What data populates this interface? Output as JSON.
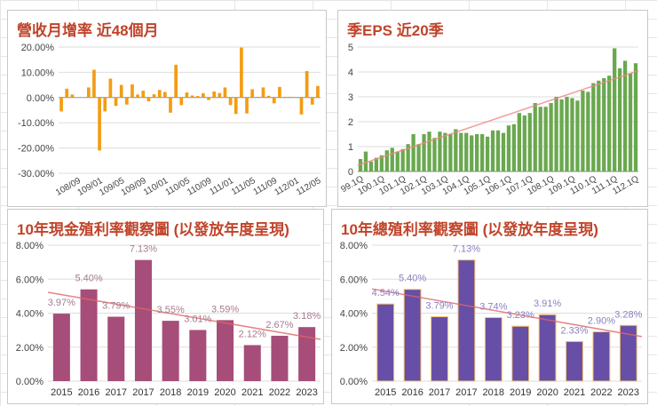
{
  "chart_data": [
    {
      "type": "bar",
      "title": "營收月增率 近48個月",
      "color": "#f39c12",
      "ylim": [
        -30,
        20
      ],
      "yticks": [
        "20.00%",
        "10.00%",
        "0.00%",
        "-10.00%",
        "-20.00%",
        "-30.00%"
      ],
      "ytick_values": [
        20,
        10,
        0,
        -10,
        -20,
        -30
      ],
      "categories": [
        "108/06",
        "108/07",
        "108/08",
        "108/09",
        "108/10",
        "108/11",
        "108/12",
        "109/01",
        "109/02",
        "109/03",
        "109/04",
        "109/05",
        "109/06",
        "109/07",
        "109/08",
        "109/09",
        "109/10",
        "109/11",
        "109/12",
        "110/01",
        "110/02",
        "110/03",
        "110/04",
        "110/05",
        "110/06",
        "110/07",
        "110/08",
        "110/09",
        "110/10",
        "110/11",
        "110/12",
        "111/01",
        "111/02",
        "111/03",
        "111/04",
        "111/05",
        "111/06",
        "111/07",
        "111/08",
        "111/09",
        "111/10",
        "111/11",
        "111/12",
        "112/01",
        "112/02",
        "112/03",
        "112/04",
        "112/05"
      ],
      "xtick_labels": [
        "108/09",
        "109/01",
        "109/05",
        "109/09",
        "110/01",
        "110/05",
        "110/09",
        "111/01",
        "111/05",
        "111/09",
        "112/01",
        "112/05"
      ],
      "values": [
        -5.5,
        3.5,
        1.2,
        0.1,
        0.1,
        4,
        11,
        -21,
        -5.5,
        7.5,
        -3.3,
        5,
        -2.8,
        5.2,
        1.2,
        2.7,
        -1.5,
        1.3,
        3,
        2.2,
        -6,
        13,
        -3,
        2,
        0.8,
        0.6,
        1.7,
        -1,
        2.4,
        1.8,
        4,
        -3,
        -6.5,
        19.8,
        -6.3,
        3.3,
        0.3,
        4,
        0.7,
        -2.3,
        4.2,
        0.3,
        0.3,
        0.2,
        -6.7,
        10.5,
        -2.8,
        4.6
      ],
      "grid": true,
      "trendline": false
    },
    {
      "type": "bar",
      "title": "季EPS 近20季",
      "color": "#6aa84f",
      "trend_color": "#ee8888",
      "ylim": [
        0,
        5
      ],
      "yticks": [
        "5",
        "4",
        "3",
        "2",
        "1",
        "0"
      ],
      "ytick_values": [
        5,
        4,
        3,
        2,
        1,
        0
      ],
      "categories": [
        "99.1Q",
        "99.2Q",
        "99.3Q",
        "99.4Q",
        "100.1Q",
        "100.2Q",
        "100.3Q",
        "100.4Q",
        "101.1Q",
        "101.2Q",
        "101.3Q",
        "101.4Q",
        "102.1Q",
        "102.2Q",
        "102.3Q",
        "102.4Q",
        "103.1Q",
        "103.2Q",
        "103.3Q",
        "103.4Q",
        "104.1Q",
        "104.2Q",
        "104.3Q",
        "104.4Q",
        "105.1Q",
        "105.2Q",
        "105.3Q",
        "105.4Q",
        "106.1Q",
        "106.2Q",
        "106.3Q",
        "106.4Q",
        "107.1Q",
        "107.2Q",
        "107.3Q",
        "107.4Q",
        "108.1Q",
        "108.2Q",
        "108.3Q",
        "108.4Q",
        "109.1Q",
        "109.2Q",
        "109.3Q",
        "109.4Q",
        "110.1Q",
        "110.2Q",
        "110.3Q",
        "110.4Q",
        "111.1Q",
        "111.2Q",
        "111.3Q",
        "111.4Q",
        "112.1Q"
      ],
      "xtick_labels": [
        "99.1Q",
        "100.1Q",
        "101.1Q",
        "102.1Q",
        "103.1Q",
        "104.1Q",
        "105.1Q",
        "106.1Q",
        "107.1Q",
        "108.1Q",
        "109.1Q",
        "110.1Q",
        "111.1Q",
        "112.1Q"
      ],
      "values": [
        0.5,
        0.8,
        0.4,
        0.55,
        0.65,
        0.85,
        0.95,
        0.8,
        0.9,
        1.1,
        1.5,
        1.1,
        1.5,
        1.6,
        1.35,
        1.6,
        1.55,
        1.5,
        1.7,
        1.55,
        1.55,
        1.45,
        1.5,
        1.5,
        1.4,
        1.65,
        1.65,
        1.55,
        1.85,
        1.9,
        2.35,
        2.25,
        2.35,
        2.75,
        2.6,
        2.6,
        2.75,
        3.0,
        2.9,
        3.0,
        2.95,
        2.85,
        3.25,
        3.2,
        3.55,
        3.65,
        3.75,
        3.85,
        4.95,
        4.15,
        4.45,
        3.95,
        4.35
      ],
      "grid": true,
      "trendline": true
    },
    {
      "type": "bar",
      "title": "10年現金殖利率觀察圖 (以發放年度呈現)",
      "color": "#a64d79",
      "label_color": "#a67a90",
      "trend_color": "#e06666",
      "ylim": [
        0,
        8
      ],
      "yticks": [
        "8.00%",
        "6.00%",
        "4.00%",
        "2.00%",
        "0.00%"
      ],
      "ytick_values": [
        8,
        6,
        4,
        2,
        0
      ],
      "categories": [
        "2015",
        "2016",
        "2017",
        "2017",
        "2018",
        "2019",
        "2020",
        "2021",
        "2022",
        "2023"
      ],
      "values": [
        3.97,
        5.4,
        3.79,
        7.13,
        3.55,
        3.01,
        3.59,
        2.12,
        2.67,
        3.18
      ],
      "data_labels": [
        "3.97%",
        "5.40%",
        "3.79%",
        "7.13%",
        "3.55%",
        "3.01%",
        "3.59%",
        "2.12%",
        "2.67%",
        "3.18%"
      ],
      "grid": true,
      "trendline": true
    },
    {
      "type": "bar",
      "title": "10年總殖利率觀察圖 (以發放年度呈現)",
      "color": "#674ea7",
      "label_color": "#8a7fc0",
      "trend_color": "#e06666",
      "ylim": [
        0,
        8
      ],
      "yticks": [
        "8.00%",
        "6.00%",
        "4.00%",
        "2.00%",
        "0.00%"
      ],
      "ytick_values": [
        8,
        6,
        4,
        2,
        0
      ],
      "categories": [
        "2015",
        "2016",
        "2017",
        "2017",
        "2018",
        "2019",
        "2020",
        "2021",
        "2022",
        "2023"
      ],
      "values": [
        4.54,
        5.4,
        3.79,
        7.13,
        3.74,
        3.23,
        3.91,
        2.33,
        2.9,
        3.28
      ],
      "data_labels": [
        "4.54%",
        "5.40%",
        "3.79%",
        "7.13%",
        "3.74%",
        "3.23%",
        "3.91%",
        "2.33%",
        "2.90%",
        "3.28%"
      ],
      "grid": true,
      "trendline": true
    }
  ]
}
